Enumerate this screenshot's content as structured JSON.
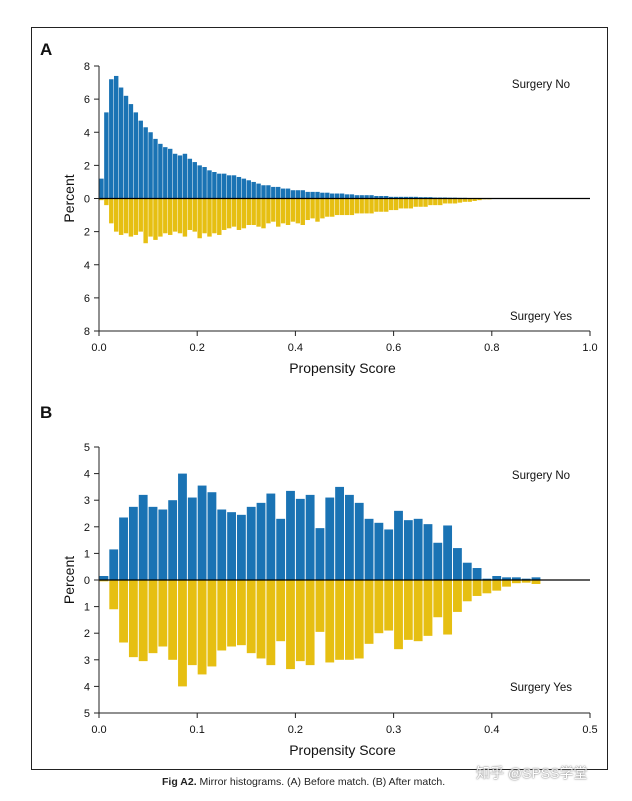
{
  "figure": {
    "caption_label": "Fig A2.",
    "caption_text": "Mirror histograms. (A) Before match. (B) After match.",
    "watermark": "知乎 @SPSS学堂"
  },
  "colors": {
    "top": "#1a73b4",
    "bottom": "#e6bf12",
    "axis": "#222222"
  },
  "chart_data": [
    {
      "type": "bar",
      "panel_label": "A",
      "xlabel": "Propensity Score",
      "ylabel": "Percent",
      "top_label": "Surgery No",
      "bottom_label": "Surgery Yes",
      "xlim": [
        0,
        1.0
      ],
      "xticks": [
        "0.0",
        "0.2",
        "0.4",
        "0.6",
        "0.8",
        "1.0"
      ],
      "ylim": [
        -8,
        8
      ],
      "yticks": [
        "8",
        "6",
        "4",
        "2",
        "0",
        "2",
        "4",
        "6",
        "8"
      ],
      "bin_width": 0.01,
      "x_start": 0.0,
      "series": [
        {
          "name": "Surgery No",
          "values": [
            1.2,
            5.2,
            7.2,
            7.4,
            6.7,
            6.2,
            5.7,
            5.2,
            4.7,
            4.3,
            4.0,
            3.6,
            3.3,
            3.1,
            3.0,
            2.7,
            2.6,
            2.7,
            2.4,
            2.2,
            2.0,
            1.9,
            1.7,
            1.6,
            1.5,
            1.5,
            1.4,
            1.4,
            1.3,
            1.2,
            1.1,
            1.0,
            0.9,
            0.8,
            0.8,
            0.7,
            0.7,
            0.6,
            0.6,
            0.5,
            0.5,
            0.5,
            0.4,
            0.4,
            0.4,
            0.35,
            0.35,
            0.3,
            0.3,
            0.3,
            0.25,
            0.25,
            0.2,
            0.2,
            0.2,
            0.2,
            0.15,
            0.15,
            0.15,
            0.1,
            0.1,
            0.1,
            0.1,
            0.1,
            0.1,
            0.08,
            0.08,
            0.08,
            0.06,
            0.06,
            0.06,
            0.05,
            0.05,
            0.04,
            0.04,
            0.03,
            0.03,
            0.03,
            0.02,
            0.02,
            0.02,
            0.02,
            0.01,
            0.01,
            0.01,
            0.01,
            0.01,
            0.01,
            0.01,
            0.01,
            0,
            0,
            0,
            0,
            0,
            0,
            0,
            0,
            0,
            0
          ]
        },
        {
          "name": "Surgery Yes",
          "values": [
            0.1,
            0.4,
            1.5,
            2.0,
            2.2,
            2.1,
            2.3,
            2.2,
            2.0,
            2.7,
            2.3,
            2.5,
            2.3,
            2.1,
            2.2,
            2.0,
            2.1,
            2.3,
            1.9,
            2.0,
            2.4,
            2.1,
            2.3,
            2.1,
            2.2,
            1.9,
            1.8,
            1.7,
            1.9,
            1.8,
            1.6,
            1.6,
            1.7,
            1.8,
            1.5,
            1.4,
            1.7,
            1.5,
            1.6,
            1.4,
            1.5,
            1.6,
            1.3,
            1.2,
            1.4,
            1.2,
            1.1,
            1.1,
            1.0,
            1.0,
            1.0,
            1.0,
            0.9,
            0.9,
            0.9,
            0.9,
            0.8,
            0.8,
            0.8,
            0.7,
            0.7,
            0.6,
            0.6,
            0.6,
            0.5,
            0.5,
            0.5,
            0.4,
            0.4,
            0.4,
            0.3,
            0.3,
            0.3,
            0.25,
            0.2,
            0.2,
            0.15,
            0.1,
            0.05,
            0.05,
            0.03,
            0.03,
            0,
            0,
            0,
            0,
            0,
            0,
            0,
            0,
            0,
            0,
            0,
            0,
            0,
            0,
            0,
            0,
            0,
            0
          ]
        }
      ]
    },
    {
      "type": "bar",
      "panel_label": "B",
      "xlabel": "Propensity Score",
      "ylabel": "Percent",
      "top_label": "Surgery No",
      "bottom_label": "Surgery Yes",
      "xlim": [
        0,
        0.5
      ],
      "xticks": [
        "0.0",
        "0.1",
        "0.2",
        "0.3",
        "0.4",
        "0.5"
      ],
      "ylim": [
        -5,
        5
      ],
      "yticks": [
        "5",
        "4",
        "3",
        "2",
        "1",
        "0",
        "1",
        "2",
        "3",
        "4",
        "5"
      ],
      "bin_width": 0.01,
      "x_start": 0.0,
      "series": [
        {
          "name": "Surgery No",
          "values": [
            0.15,
            1.15,
            2.35,
            2.75,
            3.2,
            2.75,
            2.65,
            3.0,
            4.0,
            3.1,
            3.55,
            3.3,
            2.65,
            2.55,
            2.45,
            2.75,
            2.9,
            3.25,
            2.3,
            3.35,
            3.05,
            3.2,
            1.95,
            3.1,
            3.5,
            3.2,
            2.9,
            2.3,
            2.15,
            1.9,
            2.6,
            2.25,
            2.3,
            2.1,
            1.4,
            2.05,
            1.2,
            0.65,
            0.45,
            0.05,
            0.15,
            0.1,
            0.1,
            0.05,
            0.1
          ]
        },
        {
          "name": "Surgery Yes",
          "values": [
            0.05,
            1.1,
            2.35,
            2.9,
            3.05,
            2.75,
            2.5,
            3.0,
            4.0,
            3.2,
            3.55,
            3.25,
            2.65,
            2.5,
            2.45,
            2.75,
            2.95,
            3.2,
            2.3,
            3.35,
            3.05,
            3.2,
            1.95,
            3.1,
            3.0,
            3.0,
            2.95,
            2.4,
            2.0,
            1.9,
            2.6,
            2.25,
            2.3,
            2.1,
            1.4,
            2.05,
            1.2,
            0.8,
            0.6,
            0.5,
            0.4,
            0.25,
            0.12,
            0.1,
            0.15
          ]
        }
      ]
    }
  ]
}
